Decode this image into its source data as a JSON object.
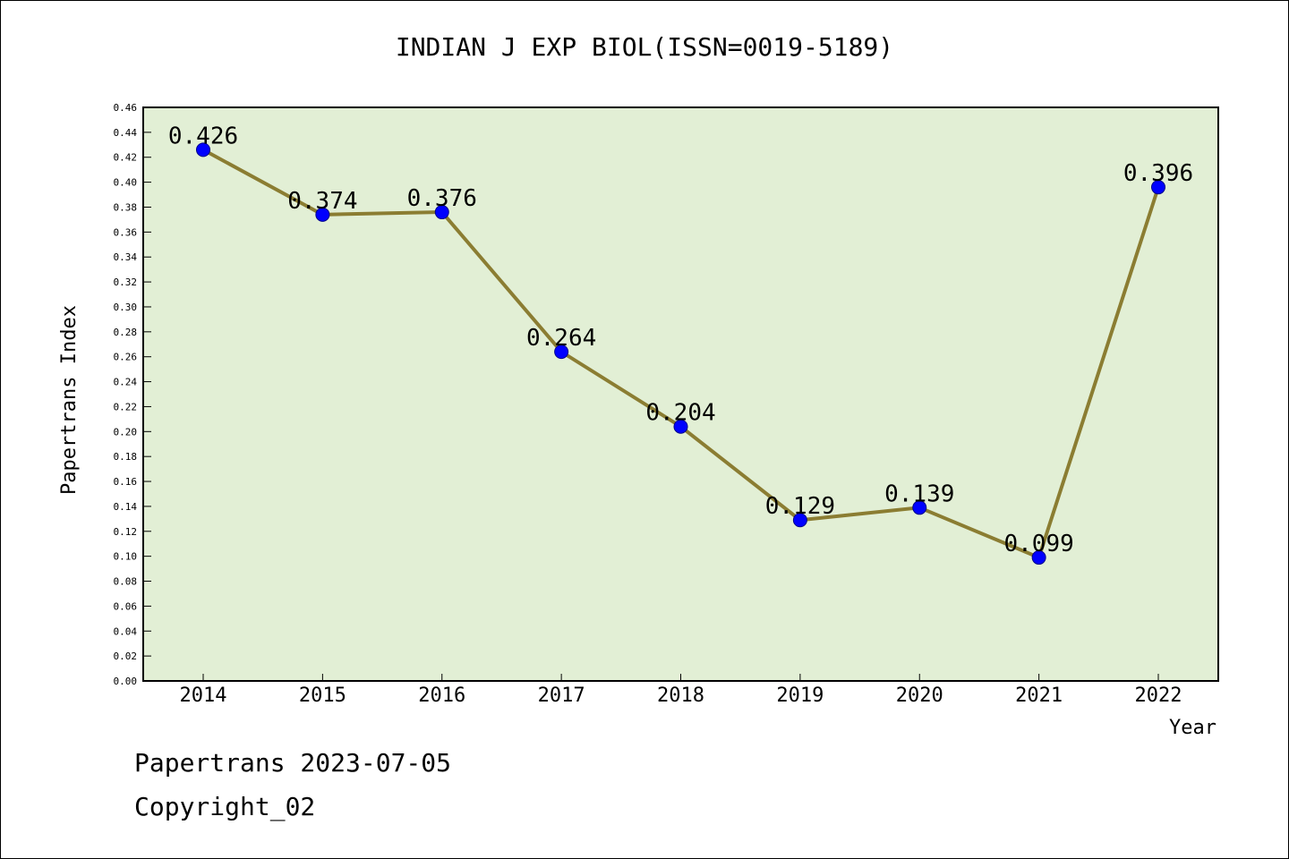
{
  "chart_data": {
    "type": "line",
    "title": "INDIAN J EXP BIOL(ISSN=0019-5189)",
    "xlabel": "Year",
    "ylabel": "Papertrans Index",
    "categories": [
      "2014",
      "2015",
      "2016",
      "2017",
      "2018",
      "2019",
      "2020",
      "2021",
      "2022"
    ],
    "series": [
      {
        "values": [
          0.426,
          0.374,
          0.376,
          0.264,
          0.204,
          0.129,
          0.139,
          0.099,
          0.396
        ],
        "labels": [
          "0.426",
          "0.374",
          "0.376",
          "0.264",
          "0.204",
          "0.129",
          "0.139",
          "0.099",
          "0.396"
        ]
      }
    ],
    "ylim": [
      0,
      0.46
    ],
    "yticks": [
      "0.00",
      "0.02",
      "0.04",
      "0.06",
      "0.08",
      "0.10",
      "0.12",
      "0.14",
      "0.16",
      "0.18",
      "0.20",
      "0.22",
      "0.24",
      "0.26",
      "0.28",
      "0.30",
      "0.32",
      "0.34",
      "0.36",
      "0.38",
      "0.40",
      "0.42",
      "0.44",
      "0.46"
    ],
    "grid": false,
    "colors": {
      "plot_background": "#e2efd5",
      "line": "#8b7d32",
      "marker": "#0000ff"
    }
  },
  "footer": {
    "line1": "Papertrans 2023-07-05",
    "line2": "Copyright_02"
  }
}
